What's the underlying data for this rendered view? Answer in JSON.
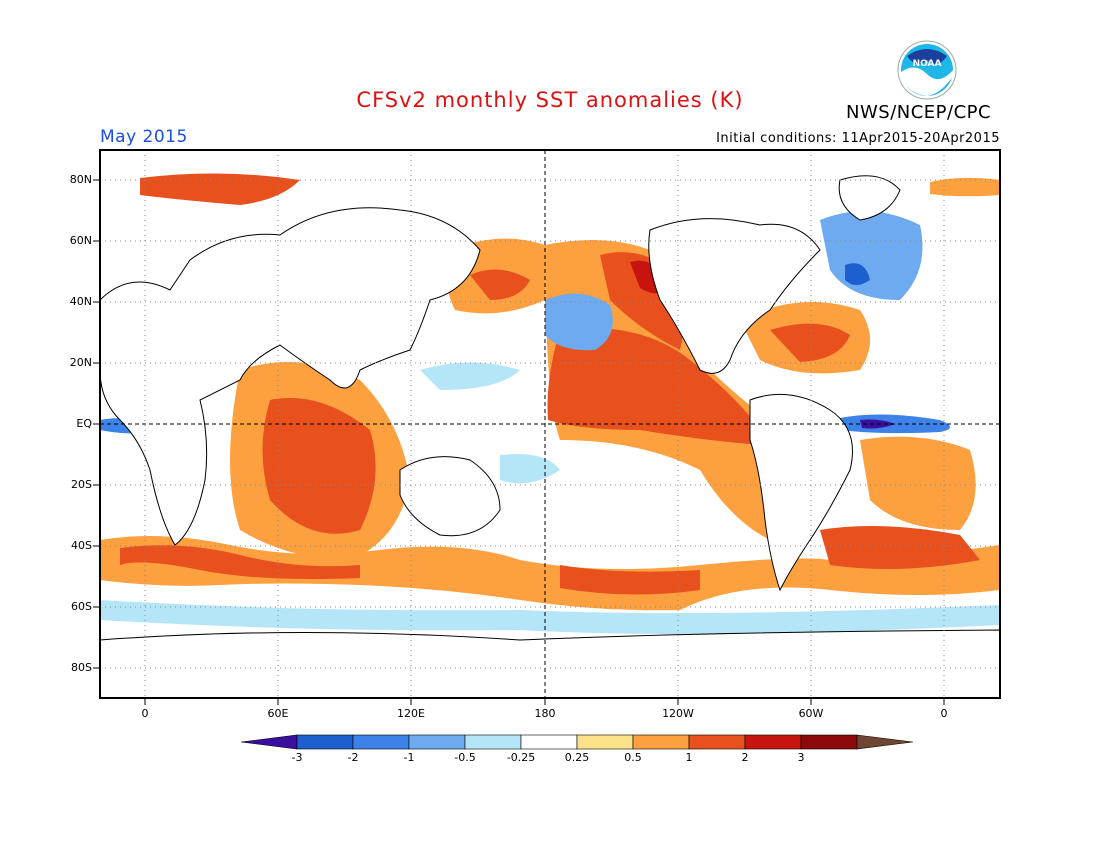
{
  "header": {
    "title": "CFSv2 monthly SST anomalies (K)",
    "agency": "NWS/NCEP/CPC",
    "month": "May 2015",
    "initial_conditions": "Initial conditions: 11Apr2015-20Apr2015",
    "logo_text": "NOAA"
  },
  "map": {
    "lat_labels": [
      "80N",
      "60N",
      "40N",
      "20N",
      "EQ",
      "20S",
      "40S",
      "60S",
      "80S"
    ],
    "lon_labels": [
      "0",
      "60E",
      "120E",
      "180",
      "120W",
      "60W",
      "0"
    ]
  },
  "colorbar": {
    "labels": [
      "-3",
      "-2",
      "-1",
      "-0.5",
      "-0.25",
      "0.25",
      "0.5",
      "1",
      "2",
      "3"
    ],
    "colors": [
      "#3a0fa0",
      "#1e5fd0",
      "#3c82e8",
      "#6eaaf0",
      "#b4e6f8",
      "#ffffff",
      "#fce38a",
      "#fca040",
      "#e8501e",
      "#c8140f",
      "#8c0a0a",
      "#6e4632"
    ]
  }
}
